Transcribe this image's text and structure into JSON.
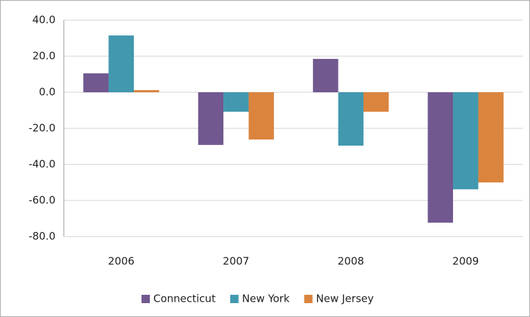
{
  "chart_data": {
    "type": "bar",
    "categories": [
      "2006",
      "2007",
      "2008",
      "2009"
    ],
    "series": [
      {
        "name": "Connecticut",
        "color": "#71588f",
        "values": [
          10.5,
          -29.2,
          18.5,
          -72.3
        ]
      },
      {
        "name": "New York",
        "color": "#4198af",
        "values": [
          31.5,
          -10.8,
          -29.6,
          -53.8
        ]
      },
      {
        "name": "New Jersey",
        "color": "#db843d",
        "values": [
          1.2,
          -26.2,
          -10.8,
          -50.0
        ]
      }
    ],
    "ylim": [
      -80,
      40
    ],
    "yticks": [
      {
        "value": -80,
        "label": "-80.0"
      },
      {
        "value": -60,
        "label": "-60.0"
      },
      {
        "value": -40,
        "label": "-40.0"
      },
      {
        "value": -20,
        "label": "-20.0"
      },
      {
        "value": 0,
        "label": "0.0"
      },
      {
        "value": 20,
        "label": "20.0"
      },
      {
        "value": 40,
        "label": "40.0"
      }
    ],
    "grid": true,
    "legend": "bottom"
  }
}
